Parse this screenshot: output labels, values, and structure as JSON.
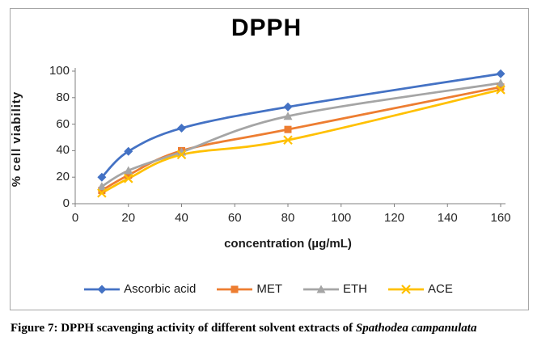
{
  "figure": {
    "caption_prefix": "Figure 7: DPPH scavenging activity of different solvent extracts of ",
    "caption_italic": "Spathodea campanulata"
  },
  "chart_data": {
    "type": "line",
    "title": "DPPH",
    "xlabel": "concentration (µg/mL)",
    "ylabel": "% cell viability",
    "x": [
      10,
      20,
      40,
      80,
      160
    ],
    "series": [
      {
        "name": "Ascorbic acid",
        "color": "#4472C4",
        "marker": "diamond",
        "values": [
          20,
          39.5,
          57,
          73,
          98
        ]
      },
      {
        "name": "MET",
        "color": "#ED7D31",
        "marker": "square",
        "values": [
          10,
          21.5,
          40,
          56,
          88
        ]
      },
      {
        "name": "ETH",
        "color": "#A5A5A5",
        "marker": "triangle",
        "values": [
          13,
          25,
          39,
          66,
          91
        ]
      },
      {
        "name": "ACE",
        "color": "#FFC000",
        "marker": "x",
        "values": [
          8,
          19,
          37,
          48,
          86
        ]
      }
    ],
    "x_ticks": [
      0,
      20,
      40,
      60,
      80,
      100,
      120,
      140,
      160
    ],
    "y_ticks": [
      0,
      20,
      40,
      60,
      80,
      100
    ],
    "xlim": [
      0,
      160
    ],
    "ylim": [
      0,
      100
    ],
    "grid": false,
    "legend_position": "bottom",
    "line_smoothing": true,
    "axis_color": "#808080"
  }
}
